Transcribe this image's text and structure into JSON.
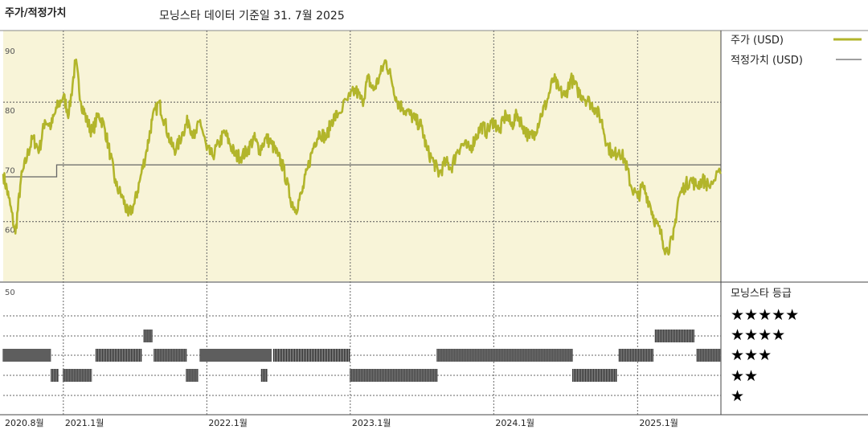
{
  "header": {
    "title": "주가/적정가치",
    "subtitle": "모닝스타 데이터 기준일 31. 7월 2025"
  },
  "legend": {
    "price_label": "주가 (USD)",
    "fair_label": "적정가치 (USD)",
    "rating_title": "모닝스타 등급",
    "stars": [
      "★★★★★",
      "★★★★",
      "★★★",
      "★★",
      "★"
    ]
  },
  "colors": {
    "price": "#b2b52b",
    "fair": "#666666",
    "panel_bg": "#f8f4d8",
    "rating_bar": "#333333"
  },
  "chart_data": [
    {
      "type": "line",
      "title": "주가/적정가치",
      "ylim": [
        50,
        92
      ],
      "yticks": [
        60,
        70,
        80,
        90
      ],
      "ytick_labels": [
        "60",
        "70",
        "80",
        "90"
      ],
      "xlim": [
        "2020-08-01",
        "2025-08-01"
      ],
      "xticks": [
        "2020-08-01",
        "2021-01-01",
        "2022-01-01",
        "2023-01-01",
        "2024-01-01",
        "2025-01-01"
      ],
      "xtick_labels": [
        "2020.8월",
        "2021.1월",
        "2022.1월",
        "2023.1월",
        "2024.1월",
        "2025.1월"
      ],
      "series": [
        {
          "name": "주가 (USD)",
          "points": [
            [
              "2020-08-01",
              68
            ],
            [
              "2020-08-15",
              64
            ],
            [
              "2020-09-01",
              58
            ],
            [
              "2020-09-15",
              67
            ],
            [
              "2020-10-01",
              71
            ],
            [
              "2020-10-15",
              74
            ],
            [
              "2020-11-01",
              72
            ],
            [
              "2020-11-15",
              77
            ],
            [
              "2020-12-01",
              76
            ],
            [
              "2020-12-15",
              79
            ],
            [
              "2021-01-01",
              81
            ],
            [
              "2021-01-15",
              78
            ],
            [
              "2021-02-01",
              87
            ],
            [
              "2021-02-15",
              80
            ],
            [
              "2021-03-01",
              77
            ],
            [
              "2021-03-15",
              75
            ],
            [
              "2021-04-01",
              78
            ],
            [
              "2021-04-15",
              76
            ],
            [
              "2021-05-01",
              71
            ],
            [
              "2021-05-15",
              66
            ],
            [
              "2021-06-01",
              64
            ],
            [
              "2021-06-15",
              61
            ],
            [
              "2021-07-01",
              63
            ],
            [
              "2021-07-15",
              67
            ],
            [
              "2021-08-01",
              72
            ],
            [
              "2021-08-15",
              77
            ],
            [
              "2021-09-01",
              80
            ],
            [
              "2021-09-15",
              77
            ],
            [
              "2021-10-01",
              73
            ],
            [
              "2021-10-15",
              72
            ],
            [
              "2021-11-01",
              75
            ],
            [
              "2021-11-15",
              77
            ],
            [
              "2021-12-01",
              74
            ],
            [
              "2021-12-15",
              77
            ],
            [
              "2022-01-01",
              72
            ],
            [
              "2022-01-15",
              71
            ],
            [
              "2022-02-01",
              73
            ],
            [
              "2022-02-15",
              75
            ],
            [
              "2022-03-01",
              73
            ],
            [
              "2022-03-15",
              71
            ],
            [
              "2022-04-01",
              71
            ],
            [
              "2022-04-15",
              72
            ],
            [
              "2022-05-01",
              74
            ],
            [
              "2022-05-15",
              72
            ],
            [
              "2022-06-01",
              74
            ],
            [
              "2022-06-15",
              73
            ],
            [
              "2022-07-01",
              71
            ],
            [
              "2022-07-15",
              69
            ],
            [
              "2022-08-01",
              64
            ],
            [
              "2022-08-15",
              62
            ],
            [
              "2022-09-01",
              65
            ],
            [
              "2022-09-15",
              69
            ],
            [
              "2022-10-01",
              73
            ],
            [
              "2022-10-15",
              75
            ],
            [
              "2022-11-01",
              74
            ],
            [
              "2022-11-15",
              77
            ],
            [
              "2022-12-01",
              78
            ],
            [
              "2023-01-01",
              81
            ],
            [
              "2023-01-15",
              82
            ],
            [
              "2023-02-01",
              80
            ],
            [
              "2023-02-15",
              84
            ],
            [
              "2023-03-01",
              82
            ],
            [
              "2023-03-15",
              84
            ],
            [
              "2023-04-01",
              87
            ],
            [
              "2023-04-15",
              84
            ],
            [
              "2023-05-01",
              80
            ],
            [
              "2023-05-15",
              79
            ],
            [
              "2023-06-01",
              78
            ],
            [
              "2023-06-15",
              77
            ],
            [
              "2023-07-01",
              76
            ],
            [
              "2023-07-15",
              72
            ],
            [
              "2023-08-01",
              70
            ],
            [
              "2023-08-15",
              68
            ],
            [
              "2023-09-01",
              70
            ],
            [
              "2023-09-15",
              69
            ],
            [
              "2023-10-01",
              72
            ],
            [
              "2023-10-15",
              73
            ],
            [
              "2023-11-01",
              72
            ],
            [
              "2023-11-15",
              74
            ],
            [
              "2023-12-01",
              76
            ],
            [
              "2023-12-15",
              75
            ],
            [
              "2024-01-01",
              77
            ],
            [
              "2024-01-15",
              75
            ],
            [
              "2024-02-01",
              78
            ],
            [
              "2024-02-15",
              76
            ],
            [
              "2024-03-01",
              78
            ],
            [
              "2024-03-15",
              76
            ],
            [
              "2024-04-01",
              74
            ],
            [
              "2024-04-15",
              75
            ],
            [
              "2024-05-01",
              78
            ],
            [
              "2024-05-15",
              80
            ],
            [
              "2024-06-01",
              84
            ],
            [
              "2024-06-15",
              82
            ],
            [
              "2024-07-01",
              81
            ],
            [
              "2024-07-15",
              84
            ],
            [
              "2024-08-01",
              82
            ],
            [
              "2024-08-15",
              81
            ],
            [
              "2024-09-01",
              80
            ],
            [
              "2024-09-15",
              79
            ],
            [
              "2024-10-01",
              77
            ],
            [
              "2024-10-15",
              73
            ],
            [
              "2024-11-01",
              71
            ],
            [
              "2024-11-15",
              72
            ],
            [
              "2024-12-01",
              70
            ],
            [
              "2024-12-15",
              66
            ],
            [
              "2025-01-01",
              64
            ],
            [
              "2025-01-15",
              66
            ],
            [
              "2025-02-01",
              63
            ],
            [
              "2025-02-15",
              60
            ],
            [
              "2025-03-01",
              58
            ],
            [
              "2025-03-15",
              55
            ],
            [
              "2025-04-01",
              57
            ],
            [
              "2025-04-15",
              64
            ],
            [
              "2025-05-01",
              66
            ],
            [
              "2025-05-15",
              67
            ],
            [
              "2025-06-01",
              66
            ],
            [
              "2025-06-15",
              67
            ],
            [
              "2025-07-01",
              66
            ],
            [
              "2025-07-31",
              68
            ]
          ]
        },
        {
          "name": "적정가치 (USD)",
          "points": [
            [
              "2020-08-01",
              67.5
            ],
            [
              "2020-12-15",
              67.5
            ],
            [
              "2020-12-15",
              69.5
            ],
            [
              "2025-07-31",
              69.5
            ]
          ]
        }
      ]
    },
    {
      "type": "bar",
      "title": "모닝스타 등급",
      "ylim": [
        0,
        6
      ],
      "yticks": [
        50
      ],
      "ytick_labels": [
        "50"
      ],
      "levels": [
        5,
        4,
        3,
        2,
        1
      ],
      "segments": [
        {
          "start": "2020-08-01",
          "end": "2020-12-01",
          "stars": 3
        },
        {
          "start": "2020-12-01",
          "end": "2020-12-20",
          "stars": 2
        },
        {
          "start": "2021-01-01",
          "end": "2021-03-15",
          "stars": 2
        },
        {
          "start": "2021-03-25",
          "end": "2021-07-20",
          "stars": 3
        },
        {
          "start": "2021-07-25",
          "end": "2021-08-15",
          "stars": 4
        },
        {
          "start": "2021-08-20",
          "end": "2021-11-10",
          "stars": 3
        },
        {
          "start": "2021-11-10",
          "end": "2021-12-10",
          "stars": 2
        },
        {
          "start": "2021-12-15",
          "end": "2022-06-15",
          "stars": 3
        },
        {
          "start": "2022-05-20",
          "end": "2022-06-05",
          "stars": 2
        },
        {
          "start": "2022-06-20",
          "end": "2023-01-01",
          "stars": 3
        },
        {
          "start": "2023-01-01",
          "end": "2023-08-10",
          "stars": 2
        },
        {
          "start": "2023-08-10",
          "end": "2024-07-20",
          "stars": 3
        },
        {
          "start": "2024-07-20",
          "end": "2024-11-10",
          "stars": 2
        },
        {
          "start": "2024-11-15",
          "end": "2025-02-10",
          "stars": 3
        },
        {
          "start": "2025-02-15",
          "end": "2025-05-25",
          "stars": 4
        },
        {
          "start": "2025-06-01",
          "end": "2025-07-31",
          "stars": 3
        }
      ]
    }
  ]
}
